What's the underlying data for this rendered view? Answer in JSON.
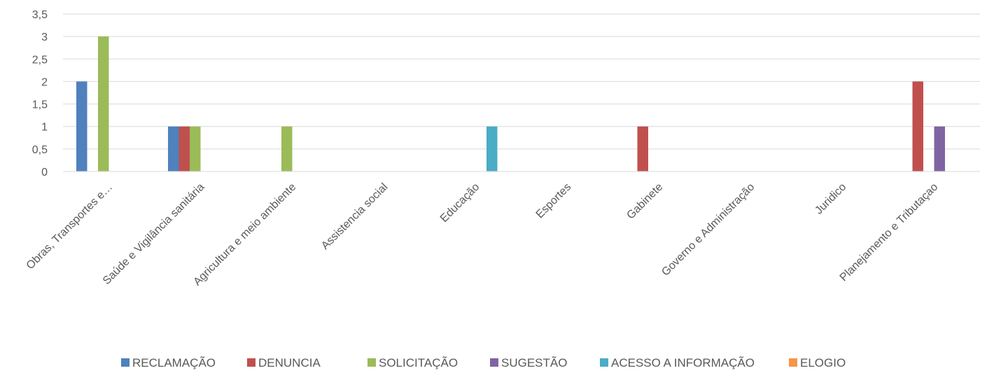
{
  "chart_data": {
    "type": "bar",
    "title": "",
    "xlabel": "",
    "ylabel": "",
    "ylim": [
      0,
      3.5
    ],
    "yticks": [
      "0",
      "0,5",
      "1",
      "1,5",
      "2",
      "2,5",
      "3",
      "3,5"
    ],
    "grid": true,
    "legend_position": "bottom",
    "categories": [
      "Obras, Transportes e…",
      "Saúde e Vigilância sanitária",
      "Agricultura e meio ambiente",
      "Assistencia social",
      "Educação",
      "Esportes",
      "Gabinete",
      "Governo e Administração",
      "Juridico",
      "Planejamento e Tributaçao"
    ],
    "series": [
      {
        "name": "RECLAMAÇÃO",
        "color": "#4f81bd",
        "values": [
          2,
          1,
          0,
          0,
          0,
          0,
          0,
          0,
          0,
          0
        ]
      },
      {
        "name": "DENUNCIA",
        "color": "#c0504d",
        "values": [
          0,
          1,
          0,
          0,
          0,
          0,
          1,
          0,
          0,
          2
        ]
      },
      {
        "name": "SOLICITAÇÃO",
        "color": "#9bbb59",
        "values": [
          3,
          1,
          1,
          0,
          0,
          0,
          0,
          0,
          0,
          0
        ]
      },
      {
        "name": "SUGESTÃO",
        "color": "#8064a2",
        "values": [
          0,
          0,
          0,
          0,
          0,
          0,
          0,
          0,
          0,
          1
        ]
      },
      {
        "name": "ACESSO A INFORMAÇÃO",
        "color": "#4bacc6",
        "values": [
          0,
          0,
          0,
          0,
          1,
          0,
          0,
          0,
          0,
          0
        ]
      },
      {
        "name": "ELOGIO",
        "color": "#f79646",
        "values": [
          0,
          0,
          0,
          0,
          0,
          0,
          0,
          0,
          0,
          0
        ]
      }
    ]
  }
}
